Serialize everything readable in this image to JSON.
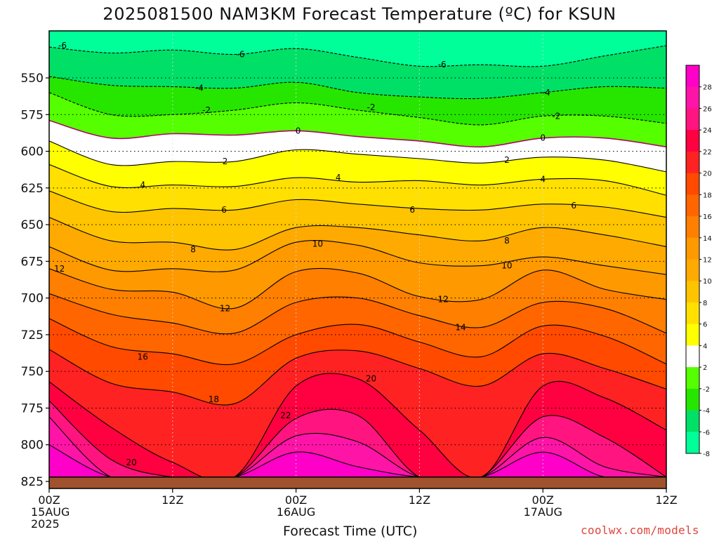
{
  "header": {
    "title": "2025081500 NAM3KM Forecast Temperature (ºC) for KSUN",
    "credit": "coolwx.com/models"
  },
  "colors": {
    "fills": [
      "#00ff99",
      "#00e066",
      "#26e600",
      "#55ff00",
      "#ffffff",
      "#ffff00",
      "#ffe000",
      "#ffc400",
      "#ffaa00",
      "#ff9900",
      "#ff7f00",
      "#ff6600",
      "#ff4a00",
      "#ff2222",
      "#ff0040",
      "#ff1480",
      "#ff14a8",
      "#ff00c8"
    ],
    "ground": "#a0522d",
    "zero_line": "#b0006a"
  },
  "chart_data": {
    "type": "contour",
    "title": "2025081500 NAM3KM Forecast Temperature (ºC) for KSUN",
    "xlabel": "Forecast Time (UTC)",
    "ylabel": "",
    "x_ticks": [
      {
        "hour": 0,
        "lines": [
          "00Z",
          "15AUG",
          "2025"
        ]
      },
      {
        "hour": 12,
        "lines": [
          "12Z"
        ]
      },
      {
        "hour": 24,
        "lines": [
          "00Z",
          "16AUG"
        ]
      },
      {
        "hour": 36,
        "lines": [
          "12Z"
        ]
      },
      {
        "hour": 48,
        "lines": [
          "00Z",
          "17AUG"
        ]
      },
      {
        "hour": 60,
        "lines": [
          "12Z"
        ]
      }
    ],
    "xlim": [
      0,
      60
    ],
    "y_ticks": [
      550,
      575,
      600,
      625,
      650,
      675,
      700,
      725,
      750,
      775,
      800,
      825
    ],
    "ylim": [
      521,
      826
    ],
    "y_units": "hPa",
    "ground_pressure": 822,
    "contour_interval": 2,
    "colorbar_labels": [
      28,
      26,
      24,
      22,
      20,
      18,
      16,
      14,
      12,
      10,
      8,
      6,
      4,
      2,
      -2,
      -4,
      -6,
      -8
    ],
    "isotherms": [
      {
        "value": -8,
        "hours": [
          0,
          6,
          12,
          18,
          24,
          30,
          36,
          42,
          48,
          54,
          60
        ],
        "pressure": [
          521,
          521,
          521,
          521,
          521,
          521,
          521,
          521,
          521,
          521,
          521
        ]
      },
      {
        "value": -6,
        "hours": [
          0,
          6,
          12,
          18,
          24,
          30,
          36,
          42,
          48,
          54,
          60
        ],
        "pressure": [
          529,
          533,
          531,
          534,
          530,
          536,
          542,
          541,
          542,
          535,
          528
        ]
      },
      {
        "value": -4,
        "hours": [
          0,
          6,
          12,
          18,
          24,
          30,
          36,
          42,
          48,
          54,
          60
        ],
        "pressure": [
          549,
          555,
          556,
          557,
          553,
          560,
          563,
          564,
          560,
          556,
          557
        ]
      },
      {
        "value": -2,
        "hours": [
          0,
          6,
          12,
          18,
          24,
          30,
          36,
          42,
          48,
          54,
          60
        ],
        "pressure": [
          560,
          575,
          575,
          572,
          567,
          572,
          577,
          582,
          576,
          576,
          581
        ]
      },
      {
        "value": 0,
        "hours": [
          0,
          6,
          12,
          18,
          24,
          30,
          36,
          42,
          48,
          54,
          60
        ],
        "pressure": [
          579,
          591,
          588,
          589,
          586,
          590,
          593,
          597,
          591,
          591,
          597
        ]
      },
      {
        "value": 2,
        "hours": [
          0,
          6,
          12,
          18,
          24,
          30,
          36,
          42,
          48,
          54,
          60
        ],
        "pressure": [
          593,
          609,
          607,
          607,
          599,
          602,
          605,
          608,
          604,
          606,
          614
        ]
      },
      {
        "value": 4,
        "hours": [
          0,
          6,
          12,
          18,
          24,
          30,
          36,
          42,
          48,
          54,
          60
        ],
        "pressure": [
          609,
          624,
          623,
          624,
          618,
          621,
          620,
          623,
          619,
          620,
          630
        ]
      },
      {
        "value": 6,
        "hours": [
          0,
          6,
          12,
          18,
          24,
          30,
          36,
          42,
          48,
          54,
          60
        ],
        "pressure": [
          627,
          641,
          639,
          640,
          633,
          636,
          639,
          640,
          636,
          638,
          645
        ]
      },
      {
        "value": 8,
        "hours": [
          0,
          6,
          12,
          18,
          24,
          30,
          36,
          42,
          48,
          54,
          60
        ],
        "pressure": [
          645,
          661,
          662,
          667,
          652,
          652,
          657,
          661,
          652,
          657,
          665
        ]
      },
      {
        "value": 10,
        "hours": [
          0,
          6,
          12,
          18,
          24,
          30,
          36,
          42,
          48,
          54,
          60
        ],
        "pressure": [
          665,
          681,
          680,
          681,
          662,
          664,
          676,
          678,
          672,
          678,
          684
        ]
      },
      {
        "value": 12,
        "hours": [
          0,
          6,
          12,
          18,
          24,
          30,
          36,
          42,
          48,
          54,
          60
        ],
        "pressure": [
          680,
          694,
          696,
          707,
          682,
          683,
          699,
          701,
          681,
          694,
          701
        ]
      },
      {
        "value": 14,
        "hours": [
          0,
          6,
          12,
          18,
          24,
          30,
          36,
          42,
          48,
          54,
          60
        ],
        "pressure": [
          697,
          711,
          717,
          724,
          703,
          700,
          712,
          720,
          703,
          707,
          724
        ]
      },
      {
        "value": 16,
        "hours": [
          0,
          6,
          12,
          18,
          24,
          30,
          36,
          42,
          48,
          54,
          60
        ],
        "pressure": [
          714,
          733,
          738,
          745,
          725,
          718,
          730,
          740,
          719,
          726,
          745
        ]
      },
      {
        "value": 18,
        "hours": [
          0,
          6,
          12,
          18,
          24,
          30,
          36,
          42,
          48,
          54,
          60
        ],
        "pressure": [
          735,
          758,
          764,
          772,
          741,
          736,
          748,
          760,
          738,
          748,
          762
        ]
      },
      {
        "value": 20,
        "hours": [
          0,
          6,
          12,
          18,
          24,
          30,
          36,
          42,
          48,
          54,
          60
        ],
        "pressure": [
          757,
          788,
          812,
          822,
          760,
          755,
          790,
          822,
          760,
          768,
          790
        ]
      },
      {
        "value": 22,
        "hours": [
          0,
          6,
          12,
          18,
          24,
          30,
          36,
          42,
          48,
          54,
          60
        ],
        "pressure": [
          770,
          810,
          822,
          822,
          782,
          780,
          822,
          822,
          781,
          795,
          822
        ]
      },
      {
        "value": 24,
        "hours": [
          0,
          6,
          12,
          18,
          24,
          30,
          36,
          42,
          48,
          54,
          60
        ],
        "pressure": [
          781,
          822,
          822,
          822,
          794,
          798,
          822,
          822,
          795,
          815,
          822
        ]
      },
      {
        "value": 26,
        "hours": [
          0,
          6,
          12,
          18,
          24,
          30,
          36,
          42,
          48,
          54,
          60
        ],
        "pressure": [
          800,
          822,
          822,
          822,
          805,
          815,
          822,
          822,
          805,
          822,
          822
        ]
      }
    ],
    "contour_labels": [
      {
        "text": "-6",
        "hour": 1.3,
        "pressure": 528
      },
      {
        "text": "-6",
        "hour": 18.6,
        "pressure": 534
      },
      {
        "text": "-6",
        "hour": 38.2,
        "pressure": 541
      },
      {
        "text": "-4",
        "hour": 14.6,
        "pressure": 557
      },
      {
        "text": "-4",
        "hour": 48.3,
        "pressure": 560
      },
      {
        "text": "-2",
        "hour": 15.3,
        "pressure": 572
      },
      {
        "text": "-2",
        "hour": 31.3,
        "pressure": 570
      },
      {
        "text": "-2",
        "hour": 49.3,
        "pressure": 576
      },
      {
        "text": "0",
        "hour": 24.2,
        "pressure": 586
      },
      {
        "text": "0",
        "hour": 48.0,
        "pressure": 591
      },
      {
        "text": "2",
        "hour": 17.1,
        "pressure": 607
      },
      {
        "text": "2",
        "hour": 44.5,
        "pressure": 606
      },
      {
        "text": "4",
        "hour": 9.1,
        "pressure": 623
      },
      {
        "text": "4",
        "hour": 28.1,
        "pressure": 618
      },
      {
        "text": "4",
        "hour": 48.0,
        "pressure": 619
      },
      {
        "text": "6",
        "hour": 17.0,
        "pressure": 640
      },
      {
        "text": "6",
        "hour": 35.3,
        "pressure": 640
      },
      {
        "text": "6",
        "hour": 51.0,
        "pressure": 637
      },
      {
        "text": "8",
        "hour": 14.0,
        "pressure": 667
      },
      {
        "text": "8",
        "hour": 44.5,
        "pressure": 661
      },
      {
        "text": "10",
        "hour": 26.1,
        "pressure": 663
      },
      {
        "text": "10",
        "hour": 44.5,
        "pressure": 678
      },
      {
        "text": "12",
        "hour": 1.0,
        "pressure": 680
      },
      {
        "text": "12",
        "hour": 17.1,
        "pressure": 707
      },
      {
        "text": "12",
        "hour": 38.3,
        "pressure": 701
      },
      {
        "text": "14",
        "hour": 40.0,
        "pressure": 720
      },
      {
        "text": "16",
        "hour": 9.1,
        "pressure": 740
      },
      {
        "text": "18",
        "hour": 16.0,
        "pressure": 769
      },
      {
        "text": "20",
        "hour": 31.3,
        "pressure": 755
      },
      {
        "text": "20",
        "hour": 8.0,
        "pressure": 812
      },
      {
        "text": "22",
        "hour": 23.0,
        "pressure": 780
      }
    ]
  }
}
